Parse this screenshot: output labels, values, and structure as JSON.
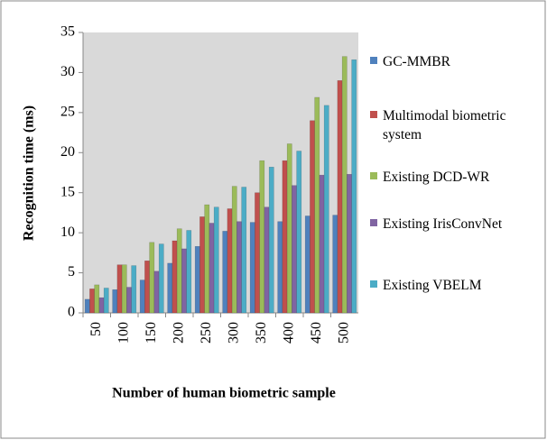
{
  "chart_data": {
    "type": "bar",
    "x_label": "Number of human biometric sample",
    "y_label": "Recognition time (ms)",
    "categories": [
      "50",
      "100",
      "150",
      "200",
      "250",
      "300",
      "350",
      "400",
      "450",
      "500"
    ],
    "series": [
      {
        "name": "GC-MMBR",
        "color": "#4f81bd",
        "values": [
          1.7,
          2.9,
          4.1,
          6.2,
          8.3,
          10.2,
          11.3,
          11.4,
          12.1,
          12.2
        ]
      },
      {
        "name": "Multimodal biometric system",
        "color": "#c0504d",
        "values": [
          3,
          6,
          6.5,
          9,
          12,
          13,
          15,
          19,
          24,
          29
        ]
      },
      {
        "name": "Existing DCD-WR",
        "color": "#9bbb59",
        "values": [
          3.5,
          6,
          8.8,
          10.5,
          13.5,
          15.8,
          19,
          21.1,
          26.9,
          32
        ]
      },
      {
        "name": "Existing IrisConvNet",
        "color": "#8064a2",
        "values": [
          1.9,
          3.2,
          5.2,
          8,
          11.2,
          11.4,
          13.2,
          15.9,
          17.2,
          17.3
        ]
      },
      {
        "name": "Existing VBELM",
        "color": "#4bacc6",
        "values": [
          3.1,
          5.9,
          8.6,
          10.3,
          13.2,
          15.7,
          18.2,
          20.2,
          25.9,
          31.6
        ]
      }
    ],
    "ylim": [
      0,
      35
    ],
    "yticks": [
      0,
      5,
      10,
      15,
      20,
      25,
      30,
      35
    ],
    "legend": "right",
    "plot_background": "#d9d9d9"
  }
}
